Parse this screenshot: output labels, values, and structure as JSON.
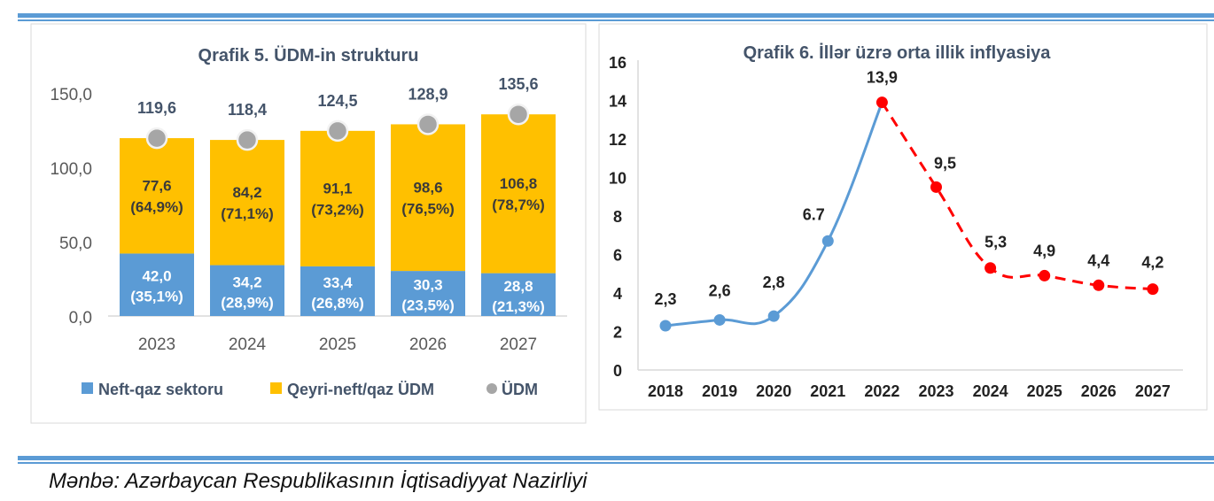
{
  "source": "Mənbə: Azərbaycan Respublikasının İqtisadiyyat Nazirliyi",
  "colors": {
    "rule": "#5b9bd5",
    "oil": "#5b9bd5",
    "nonoil": "#ffc000",
    "gdp": "#a6a6a6",
    "actual": "#5b9bd5",
    "forecast": "#ff0000",
    "title": "#44546a"
  },
  "chart_data": [
    {
      "type": "bar",
      "stacked": true,
      "title": "Qrafik 5. ÜDM-in strukturu",
      "categories": [
        "2023",
        "2024",
        "2025",
        "2026",
        "2027"
      ],
      "yticks": [
        "0,0",
        "50,0",
        "100,0",
        "150,0"
      ],
      "ylim": [
        0,
        150
      ],
      "legend_placement": "bottom",
      "series": [
        {
          "name": "Neft-qaz sektoru",
          "values": [
            42.0,
            34.2,
            33.4,
            30.3,
            28.8
          ],
          "labels": [
            "42,0",
            "34,2",
            "33,4",
            "30,3",
            "28,8"
          ],
          "shares": [
            "(35,1%)",
            "(28,9%)",
            "(26,8%)",
            "(23,5%)",
            "(21,3%)"
          ]
        },
        {
          "name": "Qeyri-neft/qaz ÜDM",
          "values": [
            77.6,
            84.2,
            91.1,
            98.6,
            106.8
          ],
          "labels": [
            "77,6",
            "84,2",
            "91,1",
            "98,6",
            "106,8"
          ],
          "shares": [
            "(64,9%)",
            "(71,1%)",
            "(73,2%)",
            "(76,5%)",
            "(78,7%)"
          ]
        },
        {
          "name": "ÜDM",
          "type": "scatter",
          "values": [
            119.6,
            118.4,
            124.5,
            128.9,
            135.6
          ],
          "labels": [
            "119,6",
            "118,4",
            "124,5",
            "128,9",
            "135,6"
          ]
        }
      ]
    },
    {
      "type": "line",
      "title": "Qrafik 6. İllər üzrə orta illik inflyasiya",
      "categories": [
        "2018",
        "2019",
        "2020",
        "2021",
        "2022",
        "2023",
        "2024",
        "2025",
        "2026",
        "2027"
      ],
      "values": [
        2.3,
        2.6,
        2.8,
        6.7,
        13.9,
        9.5,
        5.3,
        4.9,
        4.4,
        4.2
      ],
      "labels": [
        "2,3",
        "2,6",
        "2,8",
        "6.7",
        "13,9",
        "9,5",
        "5,3",
        "4,9",
        "4,4",
        "4,2"
      ],
      "actual_through": "2022",
      "forecast_style": "dashed red",
      "yticks": [
        "0",
        "2",
        "4",
        "6",
        "8",
        "10",
        "12",
        "14",
        "16"
      ],
      "ylim": [
        0,
        16
      ],
      "grid": false
    }
  ]
}
